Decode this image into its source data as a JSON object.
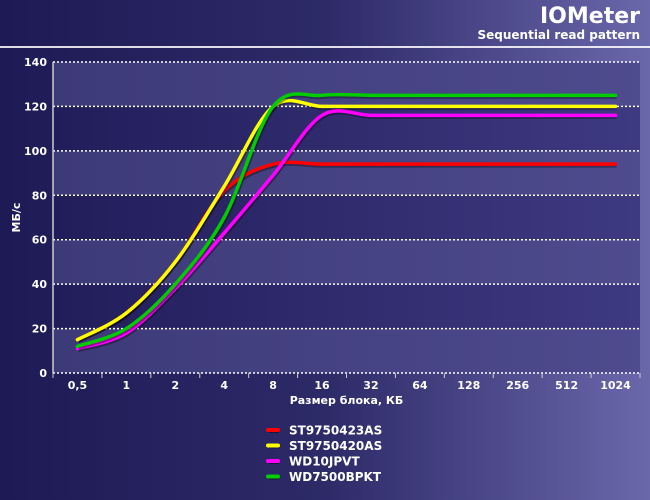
{
  "chart_data": {
    "type": "line",
    "title": "IOMeter",
    "subtitle": "Sequential read pattern",
    "xlabel": "Размер блока, КБ",
    "ylabel": "МБ/с",
    "categories": [
      "0,5",
      "1",
      "2",
      "4",
      "8",
      "16",
      "32",
      "64",
      "128",
      "256",
      "512",
      "1024"
    ],
    "ylim": [
      0,
      140
    ],
    "yticks": [
      0,
      20,
      40,
      60,
      80,
      100,
      120,
      140
    ],
    "grid": true,
    "legend_position": "bottom",
    "series": [
      {
        "name": "ST9750423AS",
        "color": "#ff0000",
        "values": [
          15,
          27,
          50,
          82,
          94,
          94,
          94,
          94,
          94,
          94,
          94,
          94
        ]
      },
      {
        "name": "ST9750420AS",
        "color": "#ffff00",
        "values": [
          15,
          27,
          50,
          84,
          120,
          120,
          120,
          120,
          120,
          120,
          120,
          120
        ]
      },
      {
        "name": "WD10JPVT",
        "color": "#ff00ff",
        "values": [
          11,
          18,
          38,
          63,
          89,
          116,
          116,
          116,
          116,
          116,
          116,
          116
        ]
      },
      {
        "name": "WD7500BPKT",
        "color": "#00cc00",
        "values": [
          12,
          20,
          40,
          70,
          120,
          125,
          125,
          125,
          125,
          125,
          125,
          125
        ]
      }
    ]
  }
}
